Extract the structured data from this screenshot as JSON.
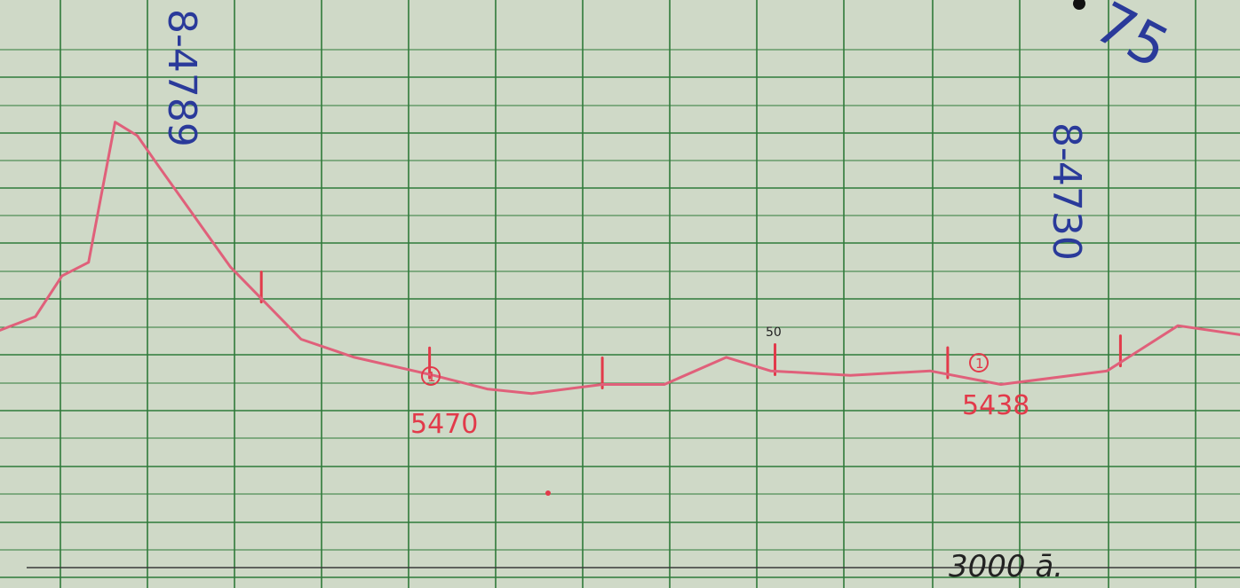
{
  "colors": {
    "paper": "#cfd9c7",
    "grid": "#2f7a3a",
    "trace": "#e0607a",
    "ink_red": "#e23a4a",
    "ink_blue": "#2a3a9a",
    "ink_black": "#222222"
  },
  "chart_data": {
    "type": "line",
    "grid": true,
    "title": "",
    "xlabel": "",
    "ylabel": "",
    "xlim": [
      0,
      14
    ],
    "ylim": [
      0,
      13
    ],
    "series": [
      {
        "x": [
          0,
          0.4,
          0.7,
          1.0,
          1.3,
          1.55,
          1.8,
          2.2,
          2.6,
          3.0,
          3.4,
          4.0,
          4.9,
          5.5,
          6.0,
          6.8,
          7.5,
          8.2,
          8.7,
          9.6,
          10.5,
          11.3,
          12.5,
          13.3,
          14.0
        ],
        "y": [
          5.7,
          6.0,
          6.9,
          7.2,
          10.3,
          10.0,
          9.3,
          8.2,
          7.1,
          6.3,
          5.5,
          5.1,
          4.7,
          4.4,
          4.3,
          4.5,
          4.5,
          5.1,
          4.8,
          4.7,
          4.8,
          4.5,
          4.8,
          5.8,
          5.6
        ]
      }
    ],
    "event_marks_x": [
      2.95,
      4.85,
      6.8,
      8.75,
      10.7,
      12.65
    ],
    "annotations": {
      "peak_label": "8-4789",
      "right_label": "8-4730",
      "corner_mark": "75",
      "small_mark": "50",
      "marker_one_a": "1",
      "marker_one_b": "1",
      "value_left": "5470",
      "value_right": "5438",
      "bottom_note": "3000 ā."
    }
  }
}
